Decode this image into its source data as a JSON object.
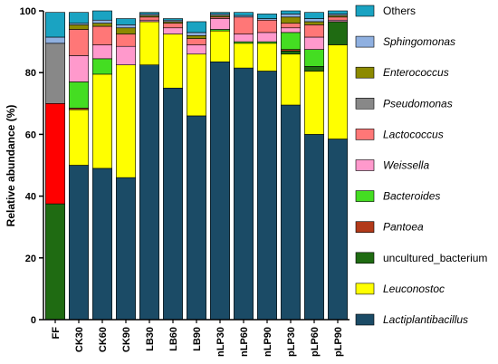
{
  "chart_data": {
    "type": "bar",
    "stacked": true,
    "percent": true,
    "xlabel": "",
    "ylabel": "Relative abundance (%)",
    "ylim": [
      0,
      100
    ],
    "yticks": [
      0,
      20,
      40,
      60,
      80,
      100
    ],
    "categories": [
      "FF",
      "CK30",
      "CK60",
      "CK90",
      "LB30",
      "LB60",
      "LB90",
      "nLP30",
      "nLP60",
      "nLP90",
      "pLP30",
      "pLP60",
      "pLP90"
    ],
    "legend_position": "right",
    "series": [
      {
        "name": "Lactiplantibacillus",
        "italic": true,
        "color": "#1b4b66",
        "values": [
          0,
          50,
          49,
          46,
          82.5,
          75,
          66,
          83.5,
          81.5,
          80.5,
          69.5,
          60,
          58.5
        ]
      },
      {
        "name": "Leuconostoc",
        "italic": true,
        "color": "#ffff00",
        "values": [
          0,
          18,
          30.5,
          36.5,
          14,
          17.5,
          20,
          10,
          8,
          9,
          16.5,
          20.5,
          30.5
        ]
      },
      {
        "name": "uncultured_bacterium",
        "italic": false,
        "color": "#1f6b12",
        "values": [
          37.5,
          0,
          0,
          0,
          0,
          0,
          0,
          0,
          0,
          0,
          1,
          1.5,
          7.5
        ]
      },
      {
        "name": "Pantoea",
        "italic": true,
        "color": "#b23a1a",
        "values": [
          0,
          0.5,
          0,
          0,
          0,
          0,
          0,
          0,
          0,
          0,
          0.5,
          0,
          0
        ]
      },
      {
        "name": "Bacteroides",
        "italic": true,
        "color": "#44dd22",
        "values": [
          0,
          8.5,
          5,
          0,
          0,
          0,
          0,
          0.5,
          0.5,
          0.5,
          5.5,
          5.5,
          0
        ]
      },
      {
        "name": "Weissella",
        "italic": true,
        "color": "#ff99cc",
        "values": [
          0,
          8.5,
          4.5,
          6,
          0.5,
          2,
          3,
          3.5,
          2.5,
          3,
          1.5,
          4,
          0.5
        ]
      },
      {
        "name": "Lactococcus",
        "italic": true,
        "color": "#ff7777",
        "values": [
          0,
          8.5,
          6,
          4,
          1,
          1.5,
          2,
          0.5,
          5.5,
          4,
          1.5,
          4,
          1
        ]
      },
      {
        "name": "Pseudomonas",
        "italic": true,
        "color": "#888888",
        "values": [
          19.5,
          0,
          0,
          0,
          0,
          0,
          0,
          0,
          0,
          0,
          0,
          0,
          0
        ]
      },
      {
        "name": "Enterococcus",
        "italic": true,
        "color": "#8c8a00",
        "values": [
          0,
          1.5,
          1,
          2,
          0.5,
          0.5,
          1,
          0.5,
          0,
          0,
          2,
          1,
          0.5
        ]
      },
      {
        "name": "Sphingomonas",
        "italic": true,
        "color": "#8fb0e0",
        "values": [
          2,
          0.5,
          1,
          1,
          0.5,
          0.5,
          1,
          0.5,
          0.5,
          0.5,
          1,
          1,
          0.5
        ]
      },
      {
        "name": "Others",
        "italic": false,
        "color": "#1aa3c2",
        "values": [
          8,
          3.5,
          3.5,
          2,
          0.5,
          0.5,
          3.5,
          0.5,
          1,
          1.5,
          2,
          2,
          1
        ]
      }
    ],
    "extra_segments": [
      {
        "category": "FF",
        "color": "#ff0000",
        "value": 32.5
      }
    ]
  }
}
